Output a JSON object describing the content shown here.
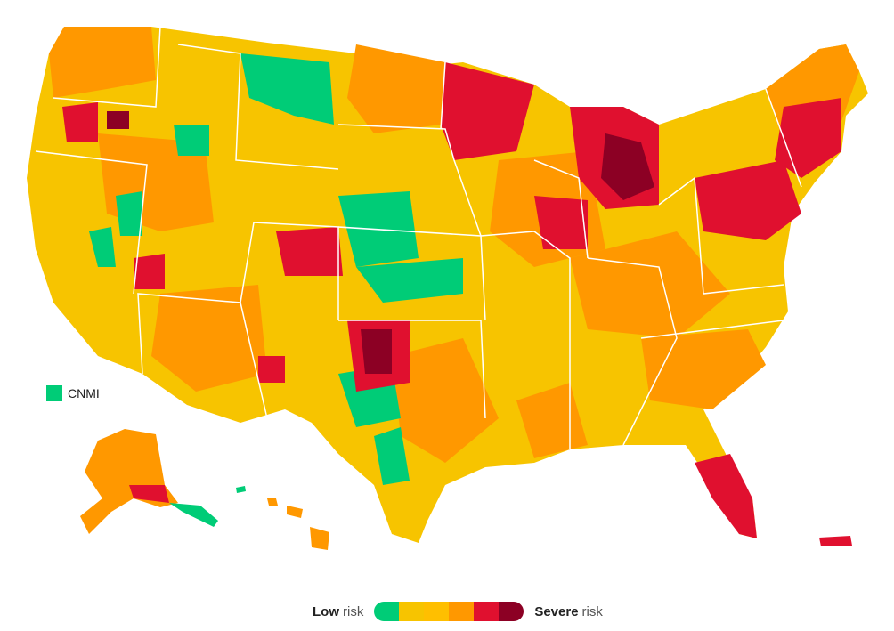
{
  "colors": {
    "low": "#00cc77",
    "moderate": "#f7c400",
    "substantial": "#ff9800",
    "high": "#ff9800",
    "very_high": "#e0102f",
    "severe": "#8c0024",
    "state_border": "#ffffff"
  },
  "territory_label": "CNMI",
  "legend": {
    "low_bold": "Low",
    "low_suffix": "risk",
    "severe_bold": "Severe",
    "severe_suffix": "risk",
    "scale": [
      "#00cc77",
      "#f7c400",
      "#ffbf00",
      "#ff9800",
      "#e0102f",
      "#8c0024"
    ]
  }
}
